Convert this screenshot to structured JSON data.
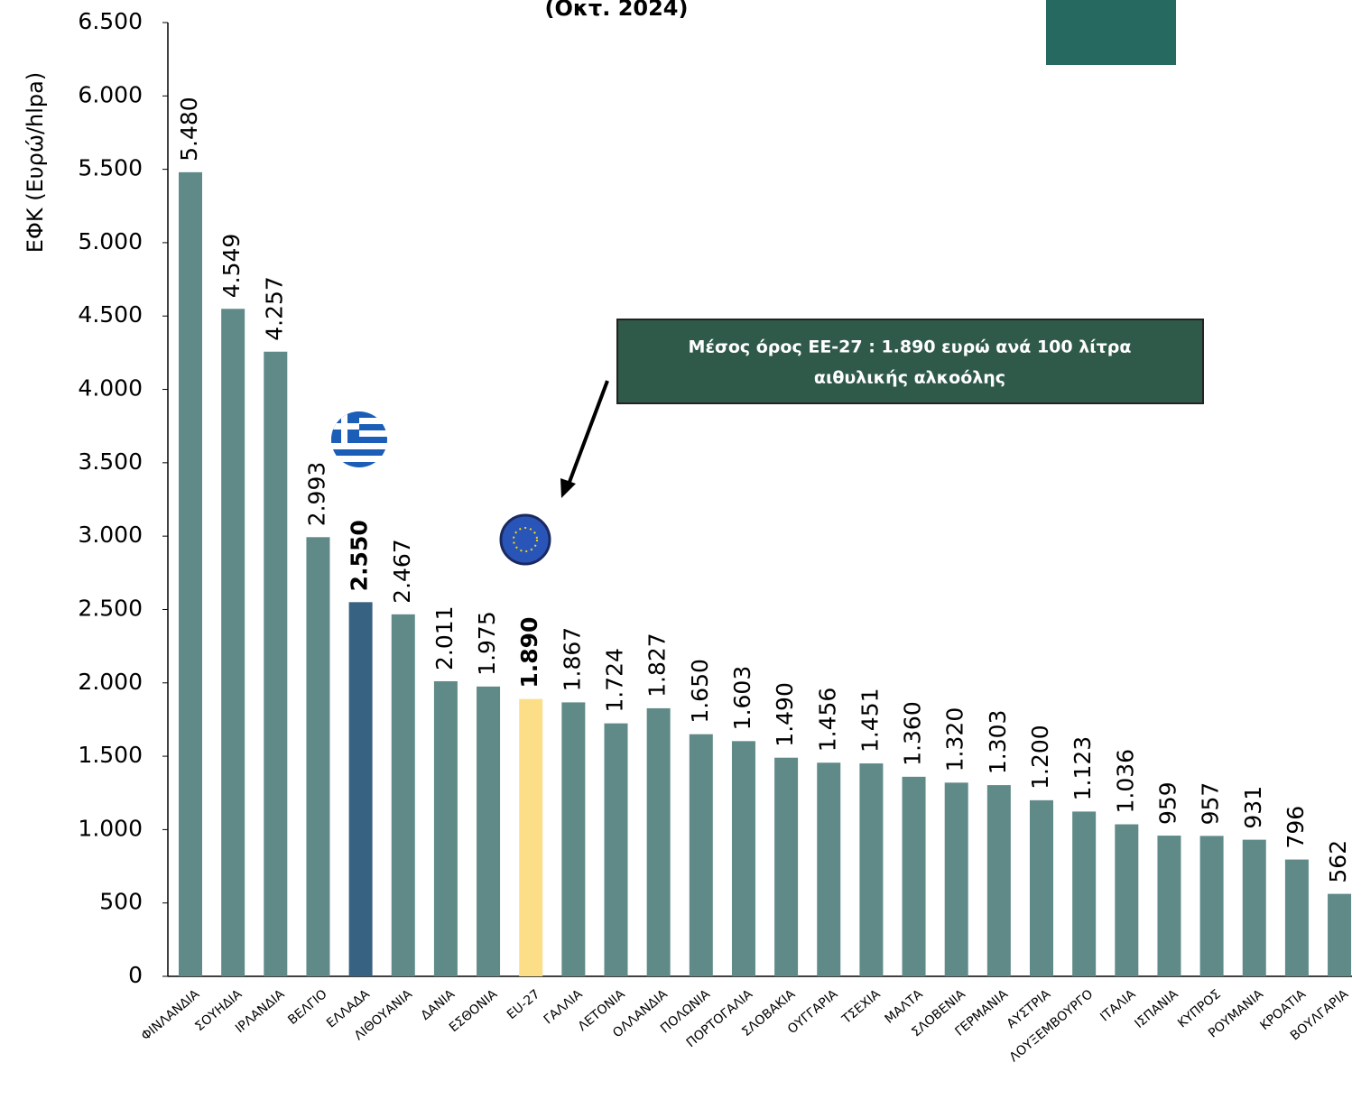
{
  "chart_data": {
    "type": "bar",
    "title": "(Οκτ. 2024)",
    "y_label": "ΕΦΚ (Ευρώ/hlpa)",
    "annotation": [
      "Μέσος όρος  ΕΕ-27 : 1.890 ευρώ ανά 100 λίτρα",
      "αιθυλικής αλκοόλης"
    ],
    "categories": [
      "ΦΙΝΛΑΝΔΙΑ",
      "ΣΟΥΗΔΙΑ",
      "ΙΡΛΑΝΔΙΑ",
      "ΒΕΛΓΙΟ",
      "ΕΛΛΑΔΑ",
      "ΛΙΘΟΥΑΝΙΑ",
      "ΔΑΝΙΑ",
      "ΕΣΘΟΝΙΑ",
      "EU-27",
      "ΓΑΛΛΙΑ",
      "ΛΕΤΟΝΙΑ",
      "ΟΛΛΑΝΔΙΑ",
      "ΠΟΛΩΝΙΑ",
      "ΠΟΡΤΟΓΑΛΙΑ",
      "ΣΛΟΒΑΚΙΑ",
      "ΟΥΓΓΑΡΙΑ",
      "ΤΣΕΧΙΑ",
      "ΜΑΛΤΑ",
      "ΣΛΟΒΕΝΙΑ",
      "ΓΕΡΜΑΝΙΑ",
      "ΑΥΣΤΡΙΑ",
      "ΛΟΥΞΕΜΒΟΥΡΓΟ",
      "ΙΤΑΛΙΑ",
      "ΙΣΠΑΝΙΑ",
      "ΚΥΠΡΟΣ",
      "ΡΟΥΜΑΝΙΑ",
      "ΚΡΟΑΤΙΑ",
      "ΒΟΥΛΓΑΡΙΑ"
    ],
    "values": [
      5480,
      4549,
      4257,
      2993,
      2550,
      2467,
      2011,
      1975,
      1890,
      1867,
      1724,
      1827,
      1650,
      1603,
      1490,
      1456,
      1451,
      1360,
      1320,
      1303,
      1200,
      1123,
      1036,
      959,
      957,
      931,
      796,
      562
    ],
    "value_labels": [
      "5.480",
      "4.549",
      "4.257",
      "2.993",
      "2.550",
      "2.467",
      "2.011",
      "1.975",
      "1.890",
      "1.867",
      "1.724",
      "1.827",
      "1.650",
      "1.603",
      "1.490",
      "1.456",
      "1.451",
      "1.360",
      "1.320",
      "1.303",
      "1.200",
      "1.123",
      "1.036",
      "959",
      "957",
      "931",
      "796",
      "562"
    ],
    "color": "#5f8a87",
    "colors": [
      "#5f8a87",
      "#5f8a87",
      "#5f8a87",
      "#5f8a87",
      "#386282",
      "#5f8a87",
      "#5f8a87",
      "#5f8a87",
      "#fcdd88",
      "#5f8a87",
      "#5f8a87",
      "#5f8a87",
      "#5f8a87",
      "#5f8a87",
      "#5f8a87",
      "#5f8a87",
      "#5f8a87",
      "#5f8a87",
      "#5f8a87",
      "#5f8a87",
      "#5f8a87",
      "#5f8a87",
      "#5f8a87",
      "#5f8a87",
      "#5f8a87",
      "#5f8a87",
      "#5f8a87",
      "#5f8a87"
    ],
    "ylim": [
      0,
      6500
    ],
    "yticks": [
      0,
      500,
      {
        "value": 1000,
        "label": "1.000"
      },
      {
        "value": 1500,
        "label": "1.500"
      },
      {
        "value": 2000,
        "label": "2.000"
      },
      {
        "value": 2500,
        "label": "2.500"
      },
      {
        "value": 3000,
        "label": "3.000"
      },
      {
        "value": 3500,
        "label": "3.500"
      },
      {
        "value": 4000,
        "label": "4.000"
      },
      {
        "value": 4500,
        "label": "4.500"
      },
      {
        "value": 5000,
        "label": "5.000"
      },
      {
        "value": 5500,
        "label": "5.500"
      },
      {
        "value": 6000,
        "label": "6.000"
      },
      {
        "value": 6500,
        "label": "6.500"
      }
    ],
    "grid": false
  }
}
